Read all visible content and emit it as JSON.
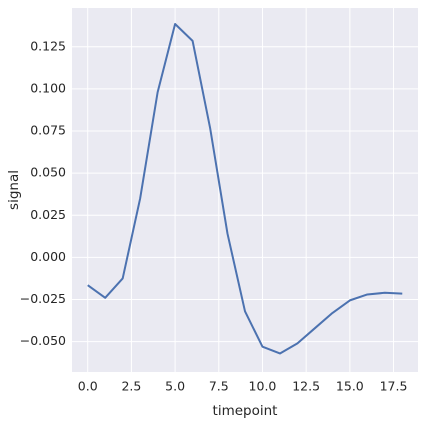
{
  "chart_data": {
    "type": "line",
    "x_label": "timepoint",
    "y_label": "signal",
    "x": [
      0,
      1,
      2,
      3,
      4,
      5,
      6,
      7,
      8,
      9,
      10,
      11,
      12,
      13,
      14,
      15,
      16,
      17,
      18
    ],
    "series": [
      {
        "color": "#4c72b0",
        "values": [
          -0.0165,
          -0.024,
          -0.0125,
          0.035,
          0.098,
          0.1385,
          0.1285,
          0.077,
          0.014,
          -0.032,
          -0.053,
          -0.057,
          -0.051,
          -0.042,
          -0.033,
          -0.0255,
          -0.022,
          -0.021,
          -0.0215
        ]
      }
    ],
    "xlim": [
      -0.9,
      18.9
    ],
    "ylim": [
      -0.068,
      0.148
    ],
    "xticks": [
      {
        "value": 0,
        "label": "0.0"
      },
      2.5,
      {
        "value": 5,
        "label": "5.0"
      },
      7.5,
      {
        "value": 10,
        "label": "10.0"
      },
      12.5,
      {
        "value": 15,
        "label": "15.0"
      },
      17.5
    ],
    "yticks": [
      {
        "value": -0.05,
        "label": "−0.050"
      },
      {
        "value": -0.025,
        "label": "−0.025"
      },
      {
        "value": 0,
        "label": "0.000"
      },
      {
        "value": 0.025,
        "label": "0.025"
      },
      {
        "value": 0.05,
        "label": "0.050"
      },
      {
        "value": 0.075,
        "label": "0.075"
      },
      {
        "value": 0.1,
        "label": "0.100"
      },
      {
        "value": 0.125,
        "label": "0.125"
      }
    ],
    "grid": true,
    "background": "#eaeaf2"
  }
}
